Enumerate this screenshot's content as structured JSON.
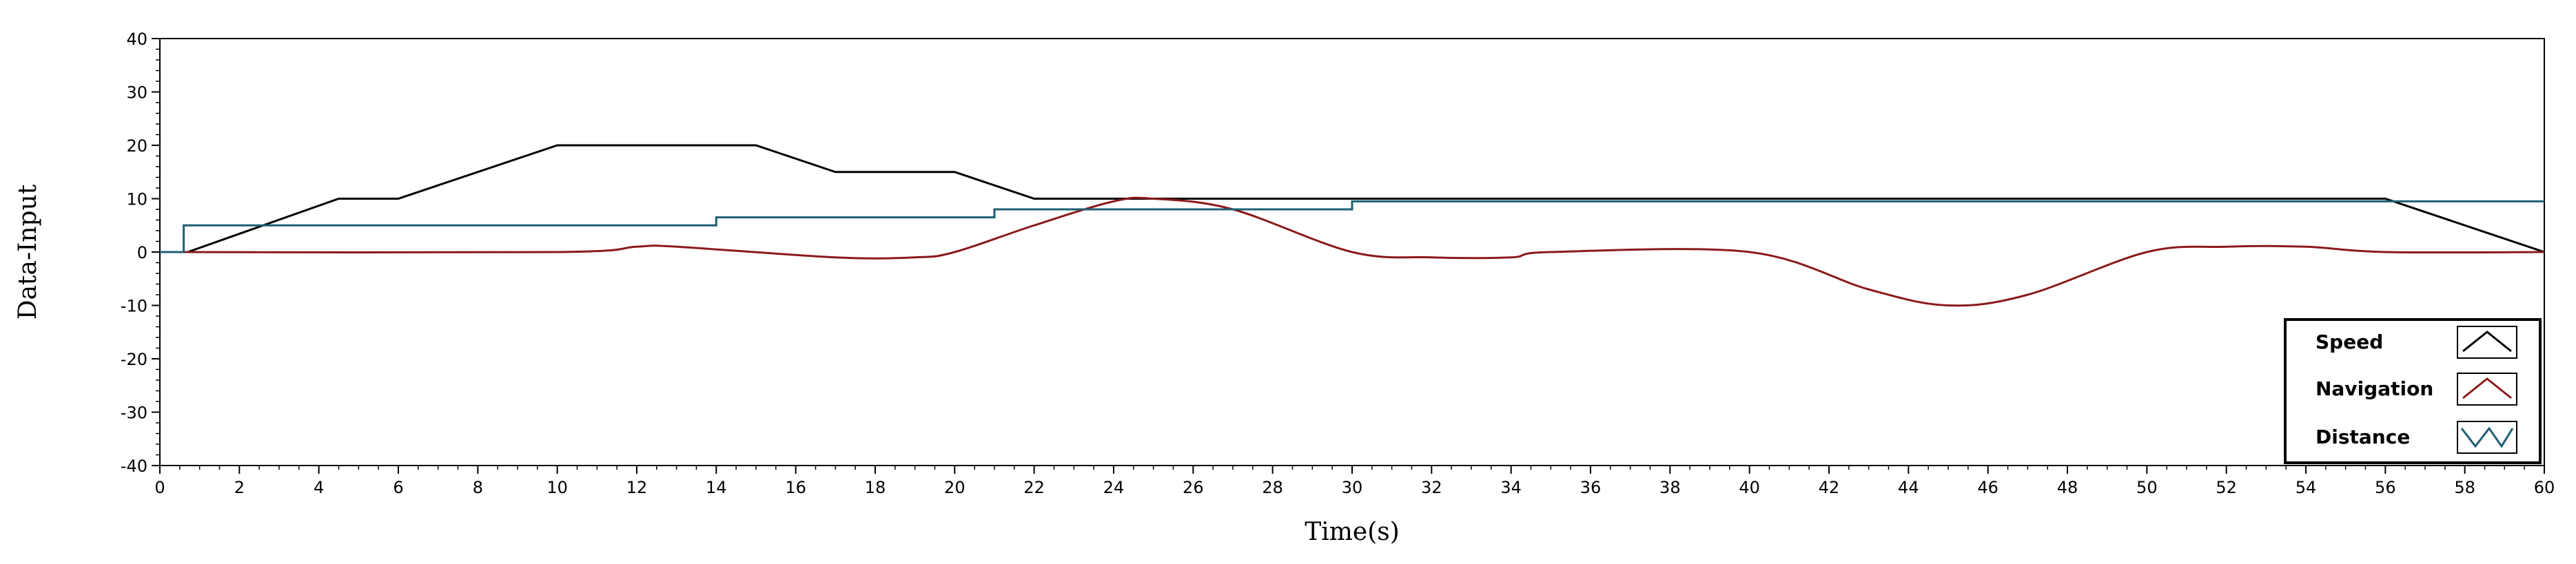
{
  "chart_data": {
    "type": "line",
    "title": "",
    "xlabel": "Time(s)",
    "ylabel": "Data-Input",
    "xlim": [
      0,
      60
    ],
    "ylim": [
      -40,
      40
    ],
    "xticks": [
      0,
      2,
      4,
      6,
      8,
      10,
      12,
      14,
      16,
      18,
      20,
      22,
      24,
      26,
      28,
      30,
      32,
      34,
      36,
      38,
      40,
      42,
      44,
      46,
      48,
      50,
      52,
      54,
      56,
      58,
      60
    ],
    "yticks": [
      -40,
      -30,
      -20,
      -10,
      0,
      10,
      20,
      30,
      40
    ],
    "grid": false,
    "legend_position": "bottom-right",
    "series": [
      {
        "name": "Speed",
        "color": "#000000",
        "kind": "polyline",
        "points": [
          [
            0,
            0
          ],
          [
            0.7,
            0
          ],
          [
            4.5,
            10
          ],
          [
            6,
            10
          ],
          [
            10,
            20
          ],
          [
            15,
            20
          ],
          [
            17,
            15
          ],
          [
            20,
            15
          ],
          [
            22,
            10
          ],
          [
            56,
            10
          ],
          [
            60,
            0
          ]
        ]
      },
      {
        "name": "Navigation",
        "color": "#8b1a1a",
        "kind": "polyline",
        "points": [
          [
            0,
            0
          ],
          [
            10,
            0
          ],
          [
            12,
            1
          ],
          [
            13,
            1
          ],
          [
            17,
            -1
          ],
          [
            19,
            -1
          ],
          [
            20,
            0
          ],
          [
            22,
            5
          ],
          [
            24,
            9.5
          ],
          [
            25,
            10
          ],
          [
            27,
            8
          ],
          [
            30,
            0
          ],
          [
            32,
            -1
          ],
          [
            34,
            -1
          ],
          [
            35,
            0
          ],
          [
            40,
            0
          ],
          [
            43,
            -7
          ],
          [
            45,
            -10
          ],
          [
            47,
            -8
          ],
          [
            50,
            0
          ],
          [
            52,
            1
          ],
          [
            54,
            1
          ],
          [
            56,
            0
          ],
          [
            60,
            0
          ]
        ]
      },
      {
        "name": "Distance",
        "color": "#1e5f74",
        "kind": "step",
        "points": [
          [
            0,
            0
          ],
          [
            0.6,
            0
          ],
          [
            0.6,
            5
          ],
          [
            14,
            5
          ],
          [
            14,
            6.5
          ],
          [
            21,
            6.5
          ],
          [
            21,
            8
          ],
          [
            30,
            8
          ],
          [
            30,
            9.5
          ],
          [
            60,
            9.5
          ]
        ]
      }
    ]
  }
}
